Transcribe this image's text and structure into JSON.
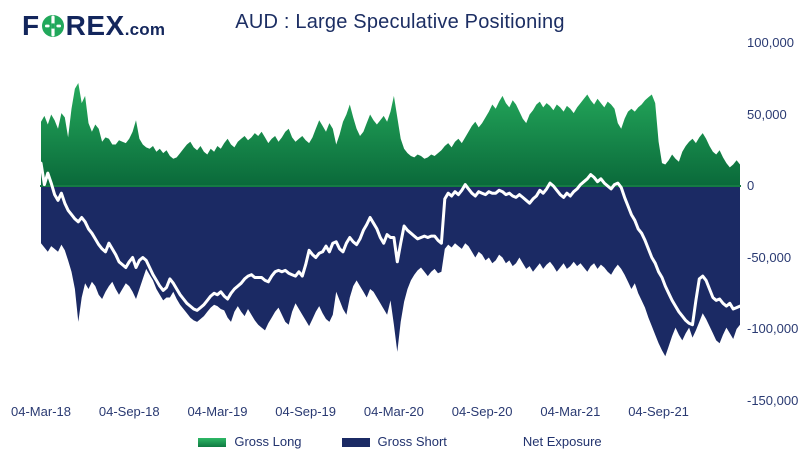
{
  "logo": {
    "f": "F",
    "rex": "REX",
    "suffix": ".com"
  },
  "title": "AUD : Large Speculative Positioning",
  "legend": {
    "items": [
      {
        "label": "Gross Long",
        "swatch": "green-gradient"
      },
      {
        "label": "Gross Short",
        "swatch": "navy"
      },
      {
        "label": "Net Exposure",
        "swatch": "white"
      }
    ]
  },
  "colors": {
    "navy": "#1b2a64",
    "green_top": "#2fc369",
    "green_bottom": "#0a693a",
    "zero_line": "#157a43",
    "net_line": "#ffffff",
    "text": "#2a3a72",
    "legend_green_top": "#2eb866",
    "legend_green_bottom": "#0f7a42",
    "logo_navy": "#13265c",
    "logo_green": "#21a85b"
  },
  "chart_data": {
    "type": "area",
    "title": "AUD : Large Speculative Positioning",
    "grid": false,
    "legend_position": "bottom",
    "x_unit": "weekly",
    "x_tick_labels": [
      "04-Mar-18",
      "04-Sep-18",
      "04-Mar-19",
      "04-Sep-19",
      "04-Mar-20",
      "04-Sep-20",
      "04-Mar-21",
      "04-Sep-21"
    ],
    "x_tick_week_indices": [
      0,
      26,
      52,
      78,
      104,
      130,
      156,
      182
    ],
    "y_tick_labels": [
      "100,000",
      "50,000",
      "0",
      "-50,000",
      "-100,000",
      "-150,000"
    ],
    "y_tick_values_thousands": [
      100,
      50,
      0,
      -50,
      -100,
      -150
    ],
    "ylim_thousands": [
      -150,
      100
    ],
    "values_unit": "contracts, thousands",
    "series": [
      {
        "name": "Gross Long",
        "type": "area",
        "color_top": "#2fc369",
        "color_bottom": "#0a693a",
        "values_thousands": [
          45,
          49,
          43,
          50,
          46,
          40,
          51,
          48,
          34,
          54,
          68,
          72,
          58,
          63,
          44,
          38,
          43,
          40,
          31,
          34,
          33,
          29,
          29,
          32,
          31,
          30,
          33,
          38,
          46,
          33,
          29,
          27,
          26,
          28,
          24,
          26,
          23,
          25,
          21,
          19,
          20,
          23,
          26,
          29,
          31,
          27,
          25,
          28,
          24,
          22,
          26,
          24,
          28,
          26,
          30,
          33,
          29,
          27,
          31,
          33,
          35,
          32,
          34,
          37,
          35,
          38,
          34,
          30,
          33,
          35,
          31,
          34,
          38,
          40,
          34,
          31,
          33,
          35,
          32,
          30,
          34,
          40,
          46,
          42,
          38,
          44,
          40,
          29,
          36,
          45,
          50,
          57,
          48,
          40,
          35,
          38,
          44,
          50,
          46,
          43,
          46,
          49,
          45,
          52,
          63,
          48,
          33,
          26,
          23,
          21,
          20,
          22,
          21,
          19,
          20,
          22,
          21,
          23,
          25,
          28,
          30,
          27,
          31,
          33,
          30,
          34,
          38,
          42,
          45,
          41,
          44,
          48,
          52,
          57,
          54,
          59,
          63,
          58,
          55,
          60,
          57,
          52,
          47,
          44,
          50,
          53,
          57,
          59,
          55,
          58,
          56,
          53,
          57,
          55,
          52,
          56,
          54,
          51,
          55,
          58,
          61,
          64,
          60,
          57,
          61,
          58,
          55,
          59,
          57,
          54,
          44,
          40,
          47,
          52,
          54,
          52,
          55,
          57,
          60,
          62,
          64,
          58,
          31,
          16,
          15,
          18,
          22,
          19,
          17,
          24,
          28,
          31,
          33,
          30,
          34,
          37,
          33,
          28,
          24,
          22,
          25,
          20,
          16,
          13,
          15,
          18,
          15
        ]
      },
      {
        "name": "Gross Short",
        "type": "area",
        "color": "#1b2a64",
        "values_thousands": [
          -40,
          -43,
          -46,
          -42,
          -44,
          -46,
          -41,
          -45,
          -52,
          -60,
          -72,
          -95,
          -78,
          -68,
          -72,
          -67,
          -70,
          -76,
          -79,
          -74,
          -70,
          -67,
          -72,
          -76,
          -72,
          -68,
          -70,
          -74,
          -79,
          -72,
          -65,
          -58,
          -62,
          -66,
          -72,
          -76,
          -80,
          -78,
          -78,
          -74,
          -79,
          -83,
          -86,
          -89,
          -92,
          -94,
          -95,
          -93,
          -91,
          -88,
          -85,
          -83,
          -84,
          -86,
          -87,
          -92,
          -95,
          -88,
          -84,
          -88,
          -91,
          -86,
          -90,
          -94,
          -97,
          -99,
          -101,
          -96,
          -92,
          -88,
          -85,
          -90,
          -95,
          -97,
          -88,
          -82,
          -86,
          -90,
          -94,
          -98,
          -93,
          -88,
          -84,
          -89,
          -93,
          -95,
          -90,
          -74,
          -80,
          -86,
          -90,
          -78,
          -70,
          -66,
          -70,
          -74,
          -78,
          -72,
          -74,
          -78,
          -82,
          -86,
          -90,
          -80,
          -97,
          -116,
          -95,
          -81,
          -72,
          -66,
          -62,
          -59,
          -57,
          -60,
          -63,
          -60,
          -58,
          -61,
          -60,
          -44,
          -41,
          -43,
          -40,
          -42,
          -44,
          -40,
          -42,
          -46,
          -50,
          -46,
          -48,
          -52,
          -50,
          -54,
          -52,
          -48,
          -50,
          -54,
          -52,
          -56,
          -54,
          -50,
          -54,
          -58,
          -56,
          -60,
          -57,
          -54,
          -58,
          -55,
          -53,
          -56,
          -60,
          -57,
          -54,
          -58,
          -56,
          -53,
          -56,
          -54,
          -57,
          -60,
          -56,
          -54,
          -58,
          -55,
          -57,
          -60,
          -62,
          -58,
          -55,
          -58,
          -62,
          -67,
          -72,
          -68,
          -75,
          -80,
          -85,
          -92,
          -98,
          -104,
          -110,
          -115,
          -119,
          -112,
          -105,
          -99,
          -104,
          -108,
          -103,
          -99,
          -106,
          -101,
          -95,
          -89,
          -93,
          -98,
          -103,
          -108,
          -110,
          -104,
          -99,
          -103,
          -107,
          -100,
          -97
        ]
      },
      {
        "name": "Net Exposure",
        "type": "line",
        "color": "#ffffff",
        "values_thousands": [
          16,
          1,
          9,
          2,
          -6,
          -10,
          -5,
          -12,
          -17,
          -20,
          -23,
          -25,
          -22,
          -25,
          -30,
          -33,
          -37,
          -41,
          -44,
          -46,
          -40,
          -44,
          -48,
          -53,
          -55,
          -57,
          -53,
          -50,
          -57,
          -52,
          -50,
          -52,
          -57,
          -62,
          -66,
          -70,
          -73,
          -71,
          -65,
          -68,
          -72,
          -76,
          -79,
          -82,
          -84,
          -86,
          -87,
          -85,
          -83,
          -80,
          -77,
          -75,
          -76,
          -74,
          -77,
          -79,
          -75,
          -72,
          -70,
          -68,
          -65,
          -63,
          -62,
          -64,
          -64,
          -64,
          -66,
          -67,
          -63,
          -60,
          -59,
          -60,
          -59,
          -61,
          -62,
          -63,
          -60,
          -63,
          -55,
          -45,
          -48,
          -50,
          -47,
          -46,
          -42,
          -46,
          -40,
          -39,
          -44,
          -46,
          -40,
          -36,
          -39,
          -41,
          -37,
          -31,
          -27,
          -22,
          -26,
          -30,
          -36,
          -40,
          -34,
          -36,
          -36,
          -53,
          -40,
          -28,
          -31,
          -33,
          -35,
          -37,
          -36,
          -35,
          -36,
          -35,
          -35,
          -38,
          -40,
          -9,
          -5,
          -7,
          -4,
          -6,
          -3,
          1,
          -2,
          -5,
          -7,
          -4,
          -5,
          -6,
          -4,
          -5,
          -5,
          -3,
          -4,
          -6,
          -5,
          -7,
          -8,
          -6,
          -8,
          -10,
          -12,
          -9,
          -7,
          -3,
          -5,
          -2,
          2,
          0,
          -3,
          -6,
          -8,
          -5,
          -7,
          -4,
          -2,
          1,
          3,
          5,
          8,
          6,
          3,
          5,
          2,
          0,
          -2,
          1,
          2,
          -1,
          -8,
          -14,
          -20,
          -24,
          -30,
          -33,
          -38,
          -44,
          -50,
          -54,
          -60,
          -64,
          -70,
          -75,
          -80,
          -84,
          -88,
          -91,
          -94,
          -96,
          -97,
          -80,
          -65,
          -63,
          -66,
          -72,
          -78,
          -80,
          -79,
          -82,
          -84,
          -82,
          -86,
          -85,
          -84
        ]
      }
    ]
  }
}
